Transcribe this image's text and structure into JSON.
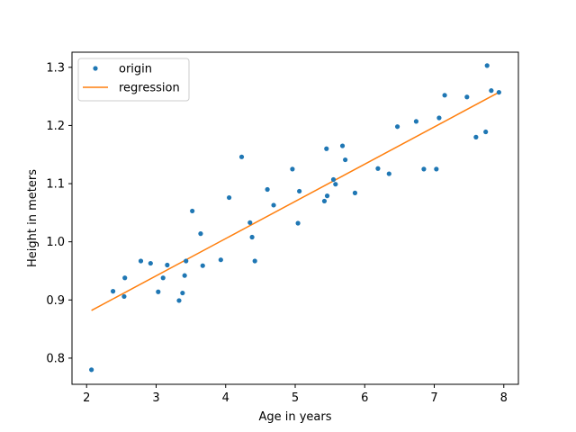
{
  "chart_data": {
    "type": "scatter",
    "title": "",
    "xlabel": "Age in years",
    "ylabel": "Height in meters",
    "xlim": [
      1.79,
      8.21
    ],
    "ylim": [
      0.755,
      1.326
    ],
    "xticks": [
      2,
      3,
      4,
      5,
      6,
      7,
      8
    ],
    "yticks": [
      0.8,
      0.9,
      1.0,
      1.1,
      1.2,
      1.3
    ],
    "grid": false,
    "legend_position": "top-left",
    "series": [
      {
        "name": "origin",
        "kind": "points",
        "color": "#1f77b4",
        "points": [
          [
            2.07,
            0.78
          ],
          [
            2.38,
            0.915
          ],
          [
            2.54,
            0.906
          ],
          [
            2.55,
            0.938
          ],
          [
            2.78,
            0.967
          ],
          [
            2.92,
            0.963
          ],
          [
            3.03,
            0.914
          ],
          [
            3.1,
            0.938
          ],
          [
            3.16,
            0.96
          ],
          [
            3.33,
            0.899
          ],
          [
            3.38,
            0.912
          ],
          [
            3.41,
            0.942
          ],
          [
            3.43,
            0.967
          ],
          [
            3.52,
            1.053
          ],
          [
            3.64,
            1.014
          ],
          [
            3.67,
            0.959
          ],
          [
            3.93,
            0.969
          ],
          [
            4.05,
            1.076
          ],
          [
            4.23,
            1.146
          ],
          [
            4.35,
            1.033
          ],
          [
            4.38,
            1.008
          ],
          [
            4.42,
            0.967
          ],
          [
            4.6,
            1.09
          ],
          [
            4.69,
            1.063
          ],
          [
            4.96,
            1.125
          ],
          [
            5.04,
            1.032
          ],
          [
            5.06,
            1.087
          ],
          [
            5.42,
            1.07
          ],
          [
            5.45,
            1.16
          ],
          [
            5.46,
            1.079
          ],
          [
            5.55,
            1.107
          ],
          [
            5.58,
            1.099
          ],
          [
            5.68,
            1.165
          ],
          [
            5.72,
            1.141
          ],
          [
            5.86,
            1.084
          ],
          [
            6.19,
            1.126
          ],
          [
            6.35,
            1.117
          ],
          [
            6.47,
            1.198
          ],
          [
            6.74,
            1.207
          ],
          [
            6.85,
            1.125
          ],
          [
            7.03,
            1.125
          ],
          [
            7.07,
            1.213
          ],
          [
            7.15,
            1.252
          ],
          [
            7.47,
            1.249
          ],
          [
            7.6,
            1.18
          ],
          [
            7.74,
            1.189
          ],
          [
            7.76,
            1.303
          ],
          [
            7.82,
            1.26
          ],
          [
            7.93,
            1.257
          ]
        ]
      },
      {
        "name": "regression",
        "kind": "line",
        "color": "#ff7f0e",
        "points": [
          [
            2.07,
            0.882
          ],
          [
            7.93,
            1.257
          ]
        ]
      }
    ]
  }
}
